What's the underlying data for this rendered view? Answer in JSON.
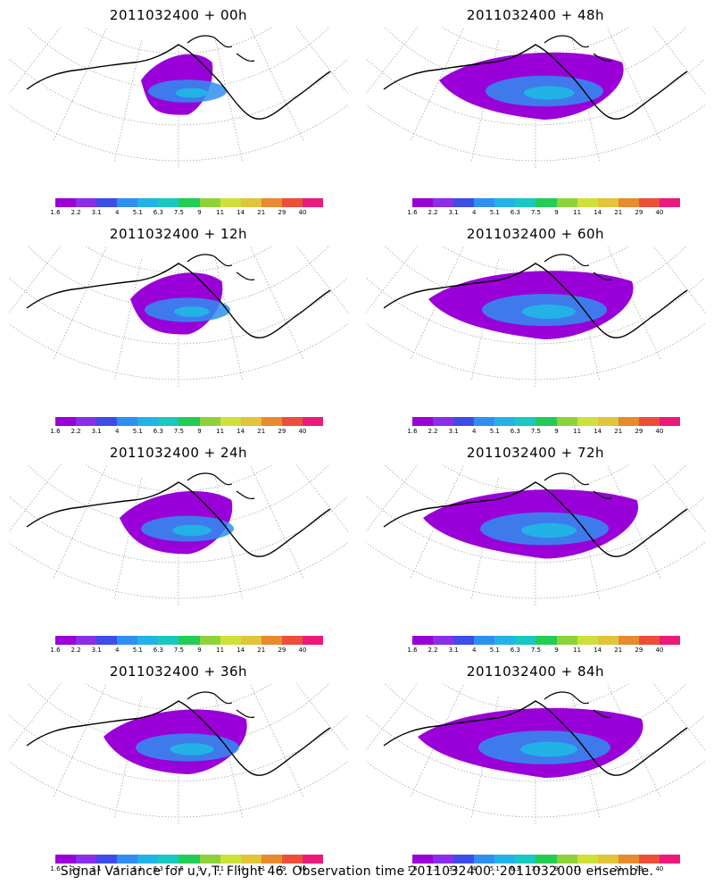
{
  "panels": [
    {
      "title": "2011032400 + 00h"
    },
    {
      "title": "2011032400 + 48h"
    },
    {
      "title": "2011032400 + 12h"
    },
    {
      "title": "2011032400 + 60h"
    },
    {
      "title": "2011032400 + 24h"
    },
    {
      "title": "2011032400 + 72h"
    },
    {
      "title": "2011032400 + 36h"
    },
    {
      "title": "2011032400 + 84h"
    }
  ],
  "colorbar": {
    "labels": [
      "1.6",
      "2.2",
      "3.1",
      "4",
      "5.1",
      "6.3",
      "7.5",
      "9",
      "11",
      "14",
      "21",
      "29",
      "40"
    ],
    "colors": [
      "#9a00d8",
      "#8b2ee8",
      "#3d4de8",
      "#2f8ff0",
      "#22b2e6",
      "#19c8c0",
      "#22cc55",
      "#8ed23a",
      "#cfe03a",
      "#e0c43a",
      "#e88a2e",
      "#ec4e3a",
      "#ec1a7a"
    ]
  },
  "caption": "Signal Variance for u,v,T. Flight 46. Observation time 2011032400. 2011032000 ensemble."
}
